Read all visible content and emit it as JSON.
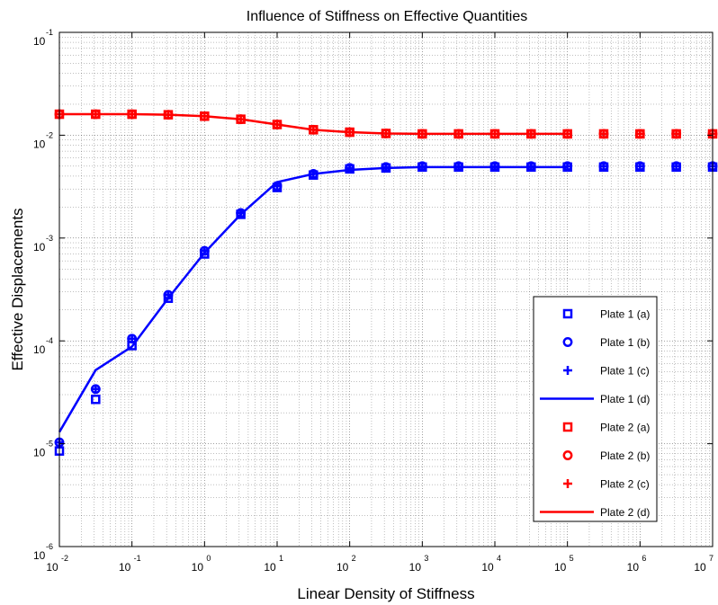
{
  "chart_data": {
    "type": "line",
    "title": "Influence of Stiffness on Effective Quantities",
    "xlabel": "Linear Density of Stiffness",
    "ylabel": "Effective Displacements",
    "xscale": "log",
    "yscale": "log",
    "xlim": [
      0.01,
      10000000
    ],
    "ylim": [
      1e-06,
      0.1
    ],
    "grid": true,
    "legend_position": "bottom-right",
    "x_tick_labels": [
      {
        "base": "10",
        "exp": "-2"
      },
      {
        "base": "10",
        "exp": "-1"
      },
      {
        "base": "10",
        "exp": "0"
      },
      {
        "base": "10",
        "exp": "1"
      },
      {
        "base": "10",
        "exp": "2"
      },
      {
        "base": "10",
        "exp": "3"
      },
      {
        "base": "10",
        "exp": "4"
      },
      {
        "base": "10",
        "exp": "5"
      },
      {
        "base": "10",
        "exp": "6"
      },
      {
        "base": "10",
        "exp": "7"
      }
    ],
    "y_tick_labels": [
      {
        "base": "10",
        "exp": "-6"
      },
      {
        "base": "10",
        "exp": "-5"
      },
      {
        "base": "10",
        "exp": "-4"
      },
      {
        "base": "10",
        "exp": "-3"
      },
      {
        "base": "10",
        "exp": "-2"
      },
      {
        "base": "10",
        "exp": "-1"
      }
    ],
    "colors": {
      "plate1": "#0000ff",
      "plate2": "#ff0000"
    },
    "series": [
      {
        "name": "Plate 1 (a)",
        "marker": "square",
        "color": "#0000ff",
        "x": [
          0.01,
          0.0316,
          0.1,
          0.316,
          1,
          3.16,
          10,
          31.6,
          100,
          316,
          1000,
          3160,
          10000,
          31600,
          100000,
          316000,
          1000000,
          3160000,
          10000000
        ],
        "y": [
          8.5e-06,
          2.7e-05,
          9e-05,
          0.00026,
          0.0007,
          0.0017,
          0.0031,
          0.0041,
          0.0047,
          0.0048,
          0.0049,
          0.0049,
          0.0049,
          0.0049,
          0.0049,
          0.0049,
          0.0049,
          0.0049,
          0.0049
        ]
      },
      {
        "name": "Plate 1 (b)",
        "marker": "circle",
        "color": "#0000ff",
        "x": [
          0.01,
          0.0316,
          0.1,
          0.316,
          1,
          3.16,
          10,
          31.6,
          100,
          316,
          1000,
          3160,
          10000,
          31600,
          100000,
          316000,
          1000000,
          3160000,
          10000000
        ],
        "y": [
          1.03e-05,
          3.4e-05,
          0.000105,
          0.00028,
          0.00075,
          0.00175,
          0.0032,
          0.0042,
          0.0048,
          0.0049,
          0.005,
          0.005,
          0.005,
          0.005,
          0.005,
          0.005,
          0.005,
          0.005,
          0.005
        ]
      },
      {
        "name": "Plate 1 (c)",
        "marker": "plus",
        "color": "#0000ff",
        "x": [
          0.01,
          0.0316,
          0.1,
          0.316,
          1,
          3.16,
          10,
          31.6,
          100,
          316,
          1000,
          3160,
          10000,
          31600,
          100000,
          316000,
          1000000,
          3160000,
          10000000
        ],
        "y": [
          1.03e-05,
          3.4e-05,
          0.000105,
          0.00028,
          0.00075,
          0.00175,
          0.0032,
          0.0042,
          0.0048,
          0.0049,
          0.005,
          0.005,
          0.005,
          0.005,
          0.005,
          0.005,
          0.005,
          0.005,
          0.005
        ]
      },
      {
        "name": "Plate 1 (d)",
        "marker": "line",
        "color": "#0000ff",
        "x": [
          0.01,
          0.0316,
          0.1,
          0.316,
          1,
          3.16,
          10,
          31.6,
          100,
          316,
          1000,
          3160,
          10000,
          31600,
          100000
        ],
        "y": [
          1.3e-05,
          5.2e-05,
          8.8e-05,
          0.00026,
          0.00072,
          0.0017,
          0.0035,
          0.0042,
          0.0046,
          0.0048,
          0.0049,
          0.0049,
          0.0049,
          0.0049,
          0.0049
        ]
      },
      {
        "name": "Plate 2 (a)",
        "marker": "square",
        "color": "#ff0000",
        "x": [
          0.01,
          0.0316,
          0.1,
          0.316,
          1,
          3.16,
          10,
          31.6,
          100,
          316,
          1000,
          3160,
          10000,
          31600,
          100000,
          316000,
          1000000,
          3160000,
          10000000
        ],
        "y": [
          0.016,
          0.016,
          0.016,
          0.0158,
          0.0153,
          0.0143,
          0.0127,
          0.0113,
          0.0107,
          0.0104,
          0.0103,
          0.0103,
          0.0103,
          0.0103,
          0.0103,
          0.0103,
          0.0103,
          0.0103,
          0.0103
        ]
      },
      {
        "name": "Plate 2 (b)",
        "marker": "circle",
        "color": "#ff0000",
        "x": [
          0.01,
          0.0316,
          0.1,
          0.316,
          1,
          3.16,
          10,
          31.6,
          100,
          316,
          1000,
          3160,
          10000,
          31600,
          100000,
          316000,
          1000000,
          3160000,
          10000000
        ],
        "y": [
          0.016,
          0.016,
          0.016,
          0.0158,
          0.0153,
          0.0143,
          0.0127,
          0.0113,
          0.0107,
          0.0104,
          0.0103,
          0.0103,
          0.0103,
          0.0103,
          0.0103,
          0.0103,
          0.0103,
          0.0103,
          0.0103
        ]
      },
      {
        "name": "Plate 2 (c)",
        "marker": "plus",
        "color": "#ff0000",
        "x": [
          0.01,
          0.0316,
          0.1,
          0.316,
          1,
          3.16,
          10,
          31.6,
          100,
          316,
          1000,
          3160,
          10000,
          31600,
          100000,
          316000,
          1000000,
          3160000,
          10000000
        ],
        "y": [
          0.016,
          0.016,
          0.016,
          0.0158,
          0.0153,
          0.0143,
          0.0127,
          0.0113,
          0.0107,
          0.0104,
          0.0103,
          0.0103,
          0.0103,
          0.0103,
          0.0103,
          0.0103,
          0.0103,
          0.0103,
          0.0103
        ]
      },
      {
        "name": "Plate 2 (d)",
        "marker": "line",
        "color": "#ff0000",
        "x": [
          0.01,
          0.0316,
          0.1,
          0.316,
          1,
          3.16,
          10,
          31.6,
          100,
          316,
          1000,
          3160,
          10000,
          31600,
          100000
        ],
        "y": [
          0.016,
          0.016,
          0.016,
          0.0158,
          0.0153,
          0.0143,
          0.0127,
          0.0113,
          0.0107,
          0.0104,
          0.0103,
          0.0103,
          0.0103,
          0.0103,
          0.0103
        ]
      }
    ]
  }
}
